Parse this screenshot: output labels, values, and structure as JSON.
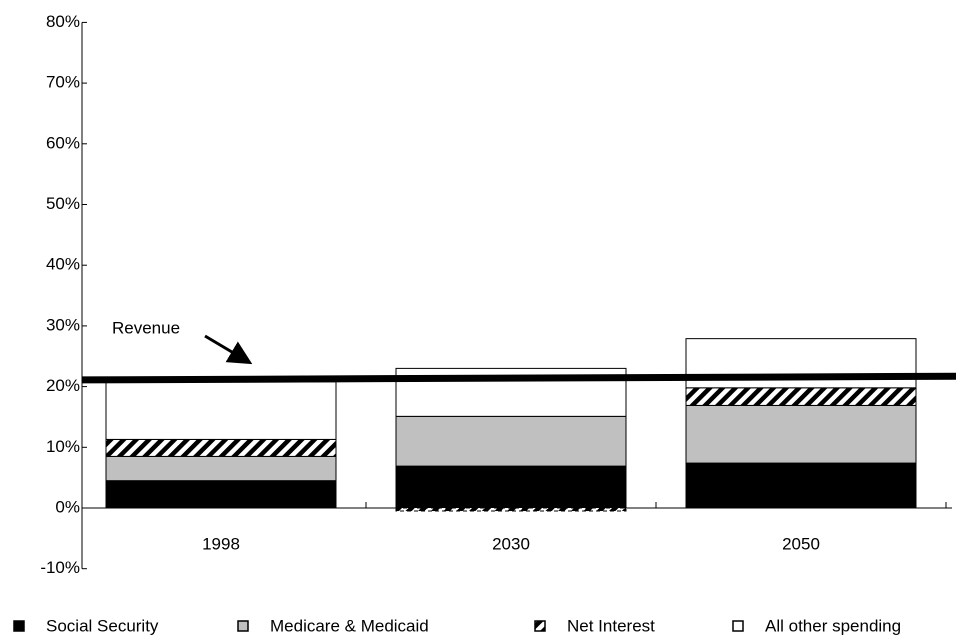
{
  "chart_data": {
    "type": "stacked_bar",
    "categories": [
      "1998",
      "2030",
      "2050"
    ],
    "series": [
      {
        "name": "Social Security",
        "color": "#000000",
        "values": [
          4.5,
          6.9,
          7.4
        ]
      },
      {
        "name": "Medicare & Medicaid",
        "color": "#c0c0c0",
        "values": [
          4.0,
          8.2,
          9.5
        ]
      },
      {
        "name": "Net Interest",
        "color": "hatch",
        "values": [
          2.8,
          -0.5,
          2.9
        ]
      },
      {
        "name": "All other spending",
        "color": "#ffffff",
        "values": [
          9.5,
          7.9,
          8.1
        ]
      }
    ],
    "revenue": {
      "label": "Revenue",
      "values": [
        21.1,
        21.7
      ]
    },
    "ylim": [
      -10,
      80
    ],
    "yticks": [
      {
        "value": -10,
        "label": "-10%"
      },
      {
        "value": 0,
        "label": "0%"
      },
      {
        "value": 10,
        "label": "10%"
      },
      {
        "value": 20,
        "label": "20%"
      },
      {
        "value": 30,
        "label": "30%"
      },
      {
        "value": 40,
        "label": "40%"
      },
      {
        "value": 50,
        "label": "50%"
      },
      {
        "value": 60,
        "label": "60%"
      },
      {
        "value": 70,
        "label": "70%"
      },
      {
        "value": 80,
        "label": "80%"
      }
    ],
    "legend": "bottom"
  }
}
